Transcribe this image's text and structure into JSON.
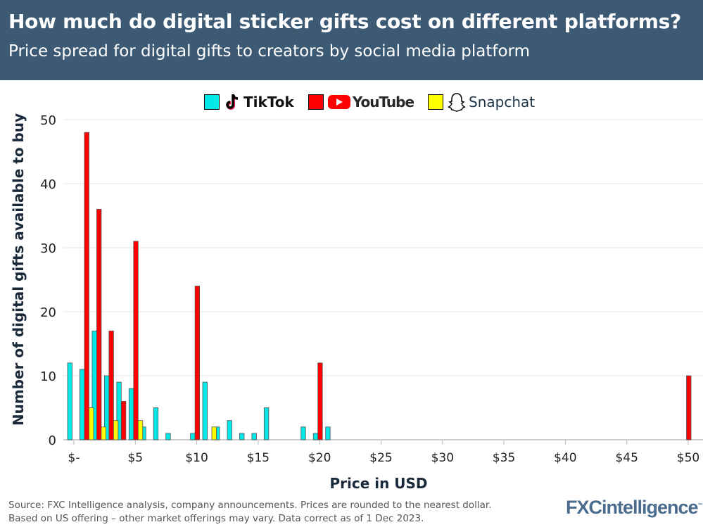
{
  "header": {
    "title": "How much do digital sticker gifts cost on different platforms?",
    "subtitle": "Price spread for digital gifts to creators by social media platform"
  },
  "footer": {
    "source_line1": "Source: FXC Intelligence analysis, company announcements. Prices are rounded to the nearest dollar.",
    "source_line2": "Based on US offering – other market offerings may vary. Data correct as of 1 Dec 2023.",
    "logo": "FXCintelligence",
    "logo_tm": "™"
  },
  "chart_data": {
    "type": "bar",
    "xlabel": "Price in USD",
    "ylabel": "Number of digital gifts available to buy",
    "xlim": [
      0,
      50
    ],
    "ylim": [
      0,
      50
    ],
    "grid": true,
    "legend_position": "top",
    "xticks": [
      0,
      5,
      10,
      15,
      20,
      25,
      30,
      35,
      40,
      45,
      50
    ],
    "xtick_labels": [
      "$-",
      "$5",
      "$10",
      "$15",
      "$20",
      "$25",
      "$30",
      "$35",
      "$40",
      "$45",
      "$50"
    ],
    "yticks": [
      0,
      10,
      20,
      30,
      40,
      50
    ],
    "series": [
      {
        "name": "TikTok",
        "color": "#00e8e8",
        "points": [
          [
            0,
            12
          ],
          [
            1,
            11
          ],
          [
            2,
            17
          ],
          [
            3,
            10
          ],
          [
            4,
            9
          ],
          [
            5,
            8
          ],
          [
            6,
            2
          ],
          [
            7,
            5
          ],
          [
            8,
            1
          ],
          [
            10,
            1
          ],
          [
            11,
            9
          ],
          [
            12,
            2
          ],
          [
            13,
            3
          ],
          [
            14,
            1
          ],
          [
            15,
            1
          ],
          [
            16,
            5
          ],
          [
            19,
            2
          ],
          [
            20,
            1
          ],
          [
            21,
            2
          ]
        ]
      },
      {
        "name": "YouTube",
        "color": "#ff0000",
        "points": [
          [
            1,
            48
          ],
          [
            2,
            36
          ],
          [
            3,
            17
          ],
          [
            4,
            6
          ],
          [
            5,
            31
          ],
          [
            10,
            24
          ],
          [
            20,
            12
          ],
          [
            50,
            10
          ]
        ]
      },
      {
        "name": "Snapchat",
        "color": "#ffff00",
        "points": [
          [
            1,
            5
          ],
          [
            2,
            2
          ],
          [
            3,
            3
          ],
          [
            5,
            3
          ],
          [
            11,
            2
          ]
        ]
      }
    ]
  }
}
